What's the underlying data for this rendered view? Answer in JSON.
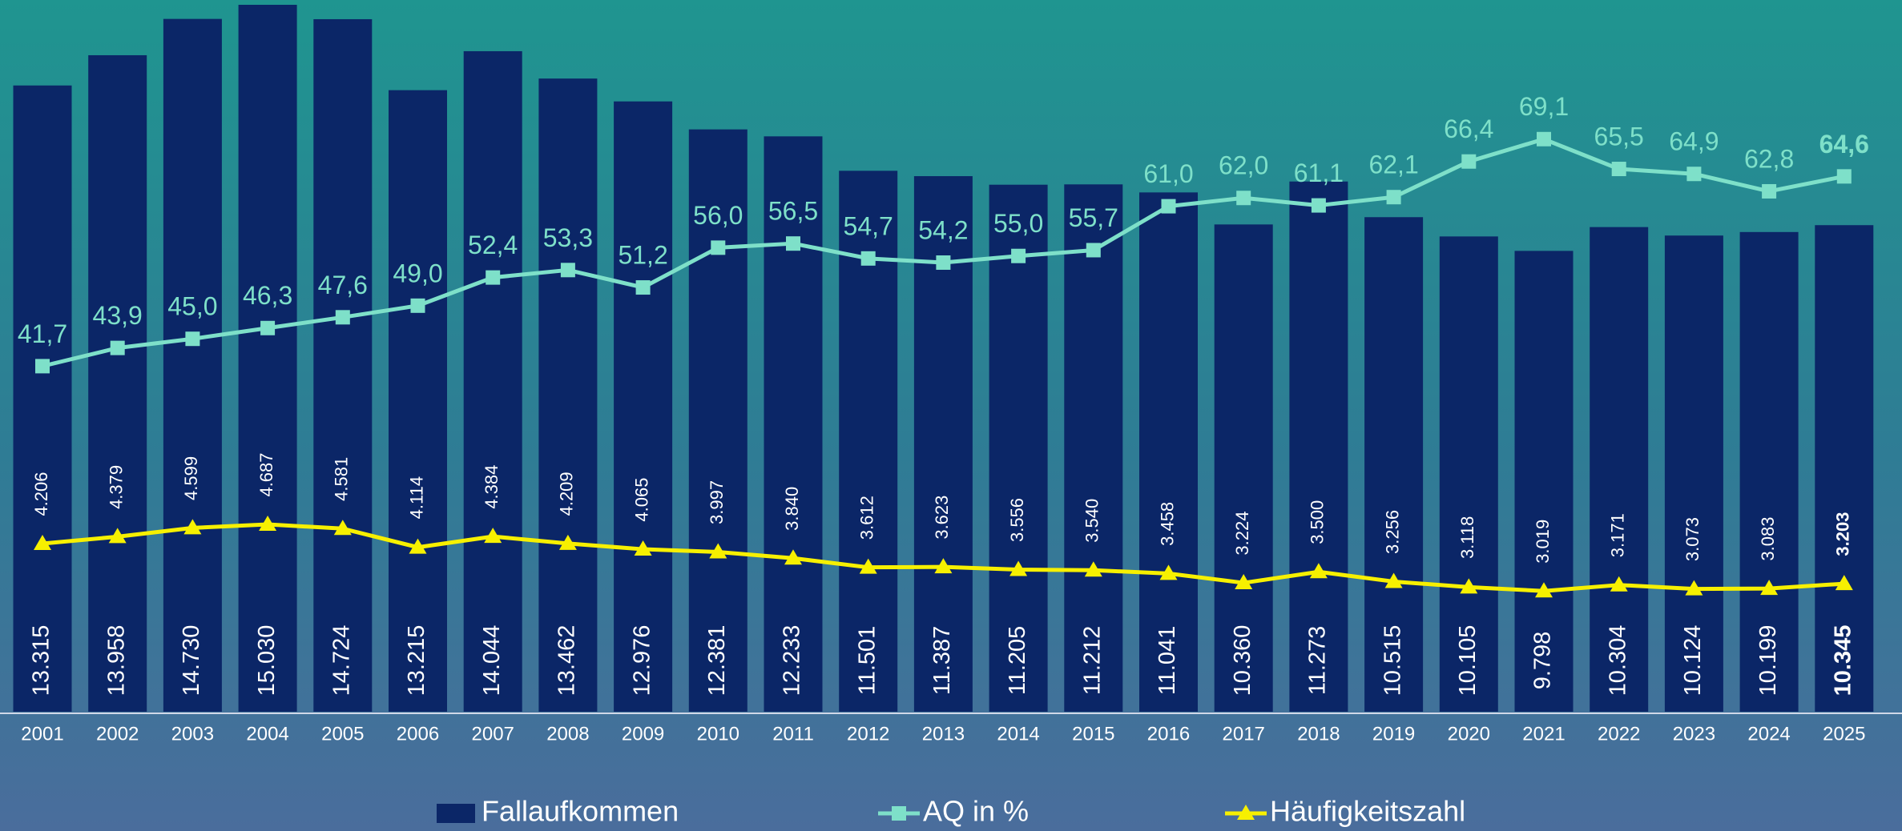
{
  "chart_data": {
    "type": "bar",
    "categories": [
      "2001",
      "2002",
      "2003",
      "2004",
      "2005",
      "2006",
      "2007",
      "2008",
      "2009",
      "2010",
      "2011",
      "2012",
      "2013",
      "2014",
      "2015",
      "2016",
      "2017",
      "2018",
      "2019",
      "2020",
      "2021",
      "2022",
      "2023",
      "2024",
      "2025"
    ],
    "series": [
      {
        "name": "Fallaufkommen",
        "type": "bar",
        "color": "#0b2667",
        "values": [
          13315,
          13958,
          14730,
          15030,
          14724,
          13215,
          14044,
          13462,
          12976,
          12381,
          12233,
          11501,
          11387,
          11205,
          11212,
          11041,
          10360,
          11273,
          10515,
          10105,
          9798,
          10304,
          10124,
          10199,
          10345
        ],
        "value_labels": [
          "13.315",
          "13.958",
          "14.730",
          "15.030",
          "14.724",
          "13.215",
          "14.044",
          "13.462",
          "12.976",
          "12.381",
          "12.233",
          "11.501",
          "11.387",
          "11.205",
          "11.212",
          "11.041",
          "10.360",
          "11.273",
          "10.515",
          "10.105",
          "9.798",
          "10.304",
          "10.124",
          "10.199",
          "10.345"
        ]
      },
      {
        "name": "AQ in %",
        "type": "line",
        "marker": "square",
        "color": "#7ee0c9",
        "values": [
          41.7,
          43.9,
          45.0,
          46.3,
          47.6,
          49.0,
          52.4,
          53.3,
          51.2,
          56.0,
          56.5,
          54.7,
          54.2,
          55.0,
          55.7,
          61.0,
          62.0,
          61.1,
          62.1,
          66.4,
          69.1,
          65.5,
          64.9,
          62.8,
          64.6
        ],
        "value_labels": [
          "41,7",
          "43,9",
          "45,0",
          "46,3",
          "47,6",
          "49,0",
          "52,4",
          "53,3",
          "51,2",
          "56,0",
          "56,5",
          "54,7",
          "54,2",
          "55,0",
          "55,7",
          "61,0",
          "62,0",
          "61,1",
          "62,1",
          "66,4",
          "69,1",
          "65,5",
          "64,9",
          "62,8",
          "64,6"
        ]
      },
      {
        "name": "Häufigkeitszahl",
        "type": "line",
        "marker": "triangle",
        "color": "#f7f000",
        "values": [
          4206,
          4379,
          4599,
          4687,
          4581,
          4114,
          4384,
          4209,
          4065,
          3997,
          3840,
          3612,
          3623,
          3556,
          3540,
          3458,
          3224,
          3500,
          3256,
          3118,
          3019,
          3171,
          3073,
          3083,
          3203
        ],
        "value_labels": [
          "4.206",
          "4.379",
          "4.599",
          "4.687",
          "4.581",
          "4.114",
          "4.384",
          "4.209",
          "4.065",
          "3.997",
          "3.840",
          "3.612",
          "3.623",
          "3.556",
          "3.540",
          "3.458",
          "3.224",
          "3.500",
          "3.256",
          "3.118",
          "3.019",
          "3.171",
          "3.073",
          "3.083",
          "3.203"
        ]
      }
    ]
  }
}
